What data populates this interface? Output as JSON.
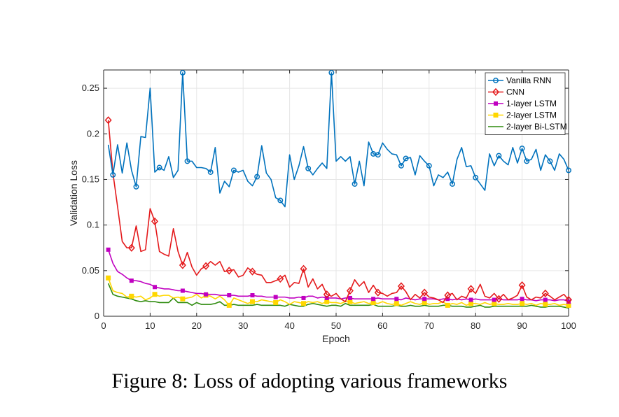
{
  "caption": "Figure 8: Loss of adopting various frameworks",
  "chart_data": {
    "type": "line",
    "title": "",
    "xlabel": "Epoch",
    "ylabel": "Validation Loss",
    "xlim": [
      0,
      100
    ],
    "ylim": [
      0,
      0.27
    ],
    "xticks": [
      0,
      10,
      20,
      30,
      40,
      50,
      60,
      70,
      80,
      90,
      100
    ],
    "yticks": [
      0,
      0.05,
      0.1,
      0.15,
      0.2,
      0.25
    ],
    "ytick_labels": [
      "0",
      "0.05",
      "0.1",
      "0.15",
      "0.2",
      "0.25"
    ],
    "grid": true,
    "legend_position": "top-right",
    "x": [
      1,
      2,
      3,
      4,
      5,
      6,
      7,
      8,
      9,
      10,
      11,
      12,
      13,
      14,
      15,
      16,
      17,
      18,
      19,
      20,
      21,
      22,
      23,
      24,
      25,
      26,
      27,
      28,
      29,
      30,
      31,
      32,
      33,
      34,
      35,
      36,
      37,
      38,
      39,
      40,
      41,
      42,
      43,
      44,
      45,
      46,
      47,
      48,
      49,
      50,
      51,
      52,
      53,
      54,
      55,
      56,
      57,
      58,
      59,
      60,
      61,
      62,
      63,
      64,
      65,
      66,
      67,
      68,
      69,
      70,
      71,
      72,
      73,
      74,
      75,
      76,
      77,
      78,
      79,
      80,
      81,
      82,
      83,
      84,
      85,
      86,
      87,
      88,
      89,
      90,
      91,
      92,
      93,
      94,
      95,
      96,
      97,
      98,
      99,
      100
    ],
    "series": [
      {
        "name": "Vanilla RNN",
        "color": "#0072BD",
        "marker": "circle",
        "values": [
          0.188,
          0.155,
          0.188,
          0.157,
          0.19,
          0.16,
          0.142,
          0.197,
          0.196,
          0.25,
          0.158,
          0.163,
          0.16,
          0.175,
          0.152,
          0.16,
          0.267,
          0.17,
          0.17,
          0.163,
          0.163,
          0.162,
          0.158,
          0.185,
          0.135,
          0.148,
          0.142,
          0.16,
          0.158,
          0.16,
          0.148,
          0.143,
          0.153,
          0.187,
          0.157,
          0.15,
          0.13,
          0.127,
          0.12,
          0.177,
          0.15,
          0.165,
          0.186,
          0.162,
          0.155,
          0.162,
          0.168,
          0.162,
          0.267,
          0.17,
          0.175,
          0.17,
          0.175,
          0.145,
          0.17,
          0.143,
          0.191,
          0.178,
          0.177,
          0.19,
          0.183,
          0.178,
          0.177,
          0.165,
          0.173,
          0.174,
          0.155,
          0.176,
          0.17,
          0.165,
          0.143,
          0.155,
          0.152,
          0.158,
          0.145,
          0.172,
          0.185,
          0.164,
          0.165,
          0.152,
          0.145,
          0.138,
          0.178,
          0.165,
          0.176,
          0.17,
          0.166,
          0.185,
          0.168,
          0.184,
          0.17,
          0.172,
          0.183,
          0.16,
          0.177,
          0.17,
          0.16,
          0.178,
          0.172,
          0.16
        ]
      },
      {
        "name": "CNN",
        "color": "#E41A1C",
        "marker": "diamond",
        "values": [
          0.215,
          0.157,
          0.12,
          0.082,
          0.075,
          0.075,
          0.099,
          0.071,
          0.073,
          0.118,
          0.104,
          0.071,
          0.068,
          0.066,
          0.096,
          0.071,
          0.056,
          0.07,
          0.054,
          0.045,
          0.052,
          0.055,
          0.06,
          0.056,
          0.06,
          0.049,
          0.05,
          0.051,
          0.043,
          0.045,
          0.053,
          0.049,
          0.046,
          0.045,
          0.037,
          0.037,
          0.039,
          0.041,
          0.045,
          0.032,
          0.037,
          0.036,
          0.052,
          0.032,
          0.041,
          0.03,
          0.035,
          0.024,
          0.022,
          0.025,
          0.019,
          0.016,
          0.028,
          0.04,
          0.033,
          0.038,
          0.026,
          0.034,
          0.026,
          0.025,
          0.022,
          0.025,
          0.026,
          0.033,
          0.027,
          0.018,
          0.024,
          0.02,
          0.026,
          0.021,
          0.02,
          0.018,
          0.015,
          0.023,
          0.025,
          0.018,
          0.022,
          0.02,
          0.03,
          0.025,
          0.035,
          0.022,
          0.02,
          0.025,
          0.019,
          0.024,
          0.018,
          0.02,
          0.023,
          0.034,
          0.021,
          0.018,
          0.021,
          0.02,
          0.025,
          0.022,
          0.018,
          0.021,
          0.024,
          0.018
        ]
      },
      {
        "name": "1-layer LSTM",
        "color": "#C000C0",
        "marker": "square-small",
        "values": [
          0.073,
          0.058,
          0.049,
          0.046,
          0.042,
          0.039,
          0.039,
          0.038,
          0.036,
          0.035,
          0.032,
          0.031,
          0.03,
          0.03,
          0.029,
          0.028,
          0.028,
          0.027,
          0.026,
          0.025,
          0.025,
          0.024,
          0.024,
          0.024,
          0.023,
          0.023,
          0.023,
          0.023,
          0.022,
          0.022,
          0.022,
          0.023,
          0.022,
          0.022,
          0.021,
          0.021,
          0.021,
          0.021,
          0.021,
          0.02,
          0.02,
          0.021,
          0.02,
          0.022,
          0.022,
          0.02,
          0.021,
          0.02,
          0.02,
          0.02,
          0.019,
          0.02,
          0.02,
          0.019,
          0.019,
          0.019,
          0.019,
          0.019,
          0.02,
          0.019,
          0.019,
          0.019,
          0.019,
          0.018,
          0.02,
          0.019,
          0.018,
          0.019,
          0.019,
          0.019,
          0.019,
          0.018,
          0.019,
          0.019,
          0.018,
          0.019,
          0.018,
          0.019,
          0.018,
          0.019,
          0.018,
          0.018,
          0.018,
          0.018,
          0.019,
          0.018,
          0.018,
          0.018,
          0.018,
          0.019,
          0.018,
          0.018,
          0.017,
          0.018,
          0.018,
          0.018,
          0.017,
          0.018,
          0.018,
          0.016
        ]
      },
      {
        "name": "2-layer LSTM",
        "color": "#FFD700",
        "marker": "square",
        "values": [
          0.042,
          0.028,
          0.026,
          0.025,
          0.021,
          0.022,
          0.021,
          0.022,
          0.018,
          0.02,
          0.024,
          0.022,
          0.023,
          0.023,
          0.02,
          0.021,
          0.019,
          0.02,
          0.021,
          0.024,
          0.02,
          0.023,
          0.022,
          0.019,
          0.022,
          0.018,
          0.012,
          0.02,
          0.018,
          0.016,
          0.014,
          0.016,
          0.016,
          0.018,
          0.017,
          0.016,
          0.015,
          0.018,
          0.016,
          0.013,
          0.016,
          0.015,
          0.014,
          0.016,
          0.015,
          0.016,
          0.014,
          0.016,
          0.015,
          0.015,
          0.014,
          0.016,
          0.016,
          0.014,
          0.015,
          0.016,
          0.014,
          0.015,
          0.014,
          0.016,
          0.014,
          0.013,
          0.014,
          0.012,
          0.014,
          0.016,
          0.014,
          0.013,
          0.015,
          0.013,
          0.014,
          0.014,
          0.016,
          0.012,
          0.014,
          0.013,
          0.015,
          0.012,
          0.014,
          0.014,
          0.013,
          0.015,
          0.013,
          0.014,
          0.013,
          0.013,
          0.014,
          0.013,
          0.013,
          0.014,
          0.013,
          0.014,
          0.012,
          0.014,
          0.013,
          0.013,
          0.014,
          0.012,
          0.013,
          0.012
        ]
      },
      {
        "name": "2-layer Bi-LSTM",
        "color": "#2E8B0E",
        "marker": "none",
        "values": [
          0.036,
          0.024,
          0.022,
          0.021,
          0.02,
          0.019,
          0.017,
          0.016,
          0.017,
          0.016,
          0.016,
          0.015,
          0.015,
          0.015,
          0.02,
          0.015,
          0.015,
          0.015,
          0.012,
          0.015,
          0.013,
          0.013,
          0.013,
          0.014,
          0.016,
          0.012,
          0.012,
          0.013,
          0.012,
          0.012,
          0.012,
          0.012,
          0.013,
          0.012,
          0.012,
          0.012,
          0.012,
          0.012,
          0.011,
          0.013,
          0.012,
          0.011,
          0.011,
          0.013,
          0.014,
          0.013,
          0.012,
          0.011,
          0.012,
          0.012,
          0.011,
          0.014,
          0.012,
          0.012,
          0.012,
          0.012,
          0.012,
          0.013,
          0.011,
          0.011,
          0.011,
          0.011,
          0.012,
          0.011,
          0.011,
          0.012,
          0.011,
          0.011,
          0.012,
          0.011,
          0.011,
          0.011,
          0.012,
          0.012,
          0.011,
          0.011,
          0.011,
          0.01,
          0.01,
          0.011,
          0.012,
          0.01,
          0.01,
          0.011,
          0.011,
          0.011,
          0.011,
          0.011,
          0.011,
          0.011,
          0.011,
          0.012,
          0.011,
          0.01,
          0.01,
          0.011,
          0.011,
          0.011,
          0.01,
          0.009
        ]
      }
    ],
    "marker_indices": {
      "Vanilla RNN": [
        2,
        7,
        12,
        17,
        18,
        23,
        28,
        33,
        38,
        44,
        49,
        54,
        58,
        59,
        64,
        65,
        70,
        75,
        80,
        85,
        90,
        91,
        96,
        100
      ],
      "CNN": [
        1,
        6,
        11,
        17,
        22,
        27,
        32,
        38,
        43,
        48,
        53,
        59,
        64,
        69,
        74,
        79,
        85,
        90,
        95,
        100
      ],
      "1-layer LSTM": [
        1,
        6,
        11,
        17,
        22,
        27,
        32,
        37,
        43,
        48,
        53,
        58,
        63,
        69,
        74,
        79,
        84,
        90,
        95,
        100
      ],
      "2-layer LSTM": [
        1,
        6,
        11,
        17,
        22,
        27,
        32,
        37,
        43,
        48,
        53,
        58,
        63,
        69,
        74,
        79,
        84,
        90,
        95,
        100
      ]
    }
  }
}
